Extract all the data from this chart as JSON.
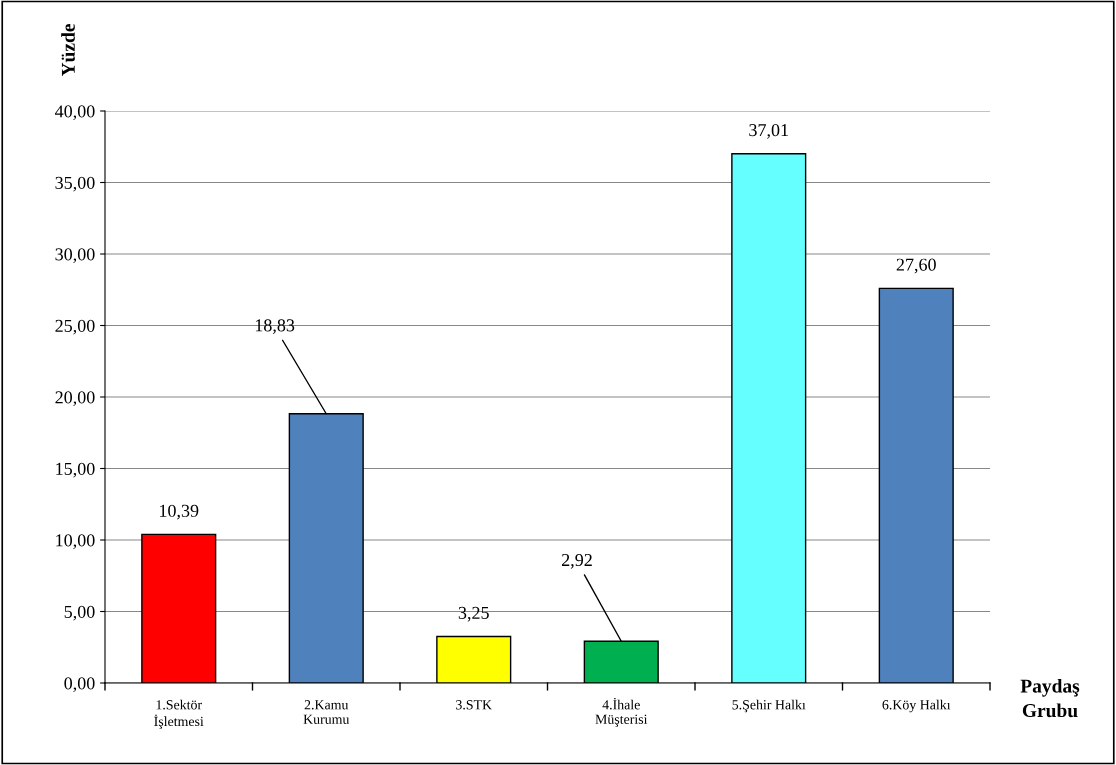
{
  "chart_data": {
    "type": "bar",
    "ylabel": "Yüzde",
    "xlabel": "Paydaş\nGrubu",
    "categories": [
      "1.Sektör\nİşletmesi",
      "2.Kamu\nKurumu",
      "3.STK",
      "4.İhale\nMüşterisi",
      "5.Şehir Halkı",
      "6.Köy Halkı"
    ],
    "values": [
      10.39,
      18.83,
      3.25,
      2.92,
      37.01,
      27.6
    ],
    "value_labels": [
      "10,39",
      "18,83",
      "3,25",
      "2,92",
      "37,01",
      "27,60"
    ],
    "colors": [
      "#ff0000",
      "#4f81bd",
      "#ffff00",
      "#00b050",
      "#66ffff",
      "#4f81bd"
    ],
    "ylim": [
      0,
      40
    ],
    "yticks": [
      {
        "value": 0,
        "label": "0,00"
      },
      {
        "value": 5,
        "label": "5,00"
      },
      {
        "value": 10,
        "label": "10,00"
      },
      {
        "value": 15,
        "label": "15,00"
      },
      {
        "value": 20,
        "label": "20,00"
      },
      {
        "value": 25,
        "label": "25,00"
      },
      {
        "value": 30,
        "label": "30,00"
      },
      {
        "value": 35,
        "label": "35,00"
      },
      {
        "value": 40,
        "label": "40,00"
      }
    ],
    "grid": "y",
    "legend": false
  }
}
